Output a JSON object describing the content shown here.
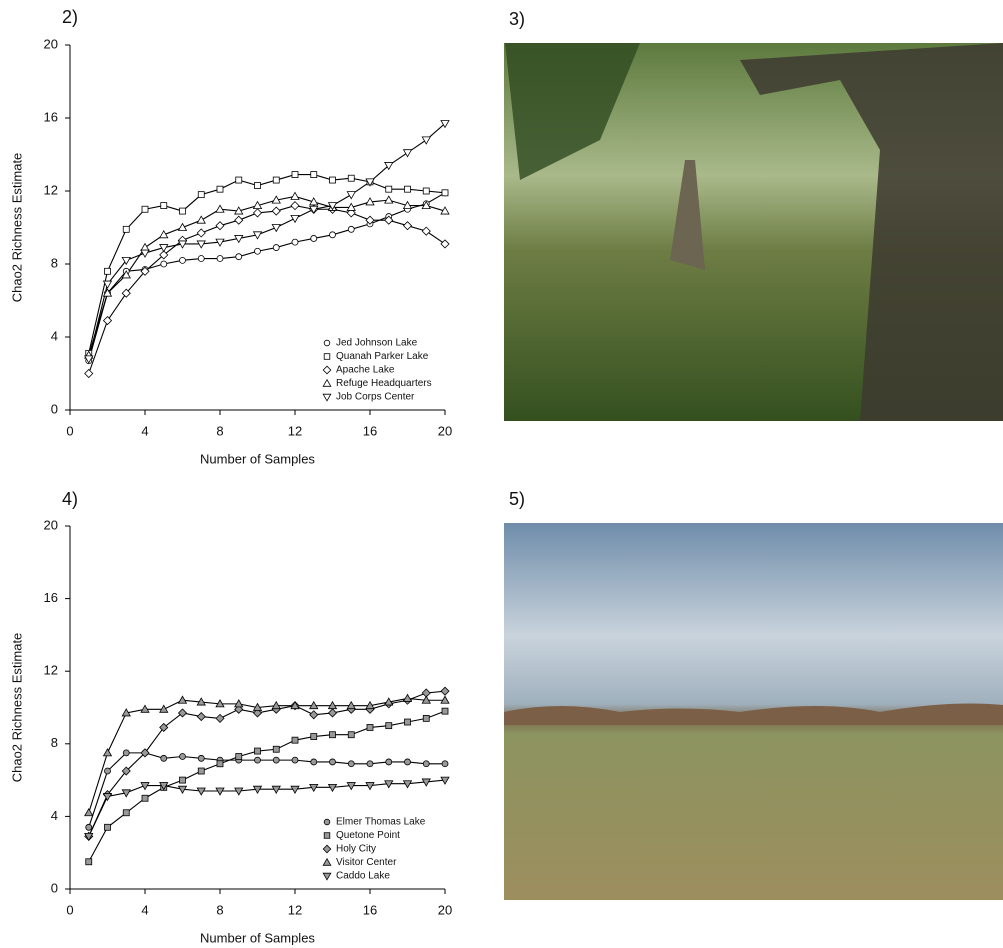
{
  "panel_labels": [
    "2)",
    "3)",
    "4)",
    "5)"
  ],
  "chart_data": [
    {
      "type": "line",
      "xlabel": "Number of Samples",
      "ylabel": "Chao2 Richness Estimate",
      "x": [
        1,
        2,
        3,
        4,
        5,
        6,
        7,
        8,
        9,
        10,
        11,
        12,
        13,
        14,
        15,
        16,
        17,
        18,
        19,
        20
      ],
      "xlim": [
        0,
        20
      ],
      "xticks": [
        0,
        4,
        8,
        12,
        16,
        20
      ],
      "ylim": [
        0,
        20
      ],
      "yticks": [
        0,
        4,
        8,
        12,
        16,
        20
      ],
      "legend": "lower right",
      "line_color": "#000000",
      "series": [
        {
          "name": "Jed Johnson Lake",
          "marker": "circle",
          "color": "#ffffff",
          "values": [
            2.7,
            6.4,
            7.6,
            7.7,
            8.0,
            8.2,
            8.3,
            8.3,
            8.4,
            8.7,
            8.9,
            9.2,
            9.4,
            9.6,
            9.9,
            10.2,
            10.6,
            11.0,
            11.3,
            11.9
          ]
        },
        {
          "name": "Quanah Parker Lake",
          "marker": "square",
          "color": "#ffffff",
          "values": [
            3.1,
            7.6,
            9.9,
            11.0,
            11.2,
            10.9,
            11.8,
            12.1,
            12.6,
            12.3,
            12.6,
            12.9,
            12.9,
            12.6,
            12.7,
            12.5,
            12.1,
            12.1,
            12.0,
            11.9
          ]
        },
        {
          "name": "Apache Lake",
          "marker": "diamond",
          "color": "#ffffff",
          "values": [
            2.0,
            4.9,
            6.4,
            7.6,
            8.5,
            9.3,
            9.7,
            10.1,
            10.4,
            10.8,
            10.9,
            11.2,
            11.0,
            11.0,
            10.8,
            10.4,
            10.4,
            10.1,
            9.8,
            9.1
          ]
        },
        {
          "name": "Refuge Headquarters",
          "marker": "triangle-up",
          "color": "#ffffff",
          "values": [
            3.0,
            6.4,
            7.4,
            8.9,
            9.6,
            10.0,
            10.4,
            11.0,
            10.9,
            11.2,
            11.5,
            11.7,
            11.4,
            11.1,
            11.1,
            11.4,
            11.5,
            11.2,
            11.2,
            10.9
          ]
        },
        {
          "name": "Job Corps Center",
          "marker": "triangle-down",
          "color": "#ffffff",
          "values": [
            2.8,
            6.9,
            8.2,
            8.6,
            8.9,
            9.1,
            9.1,
            9.2,
            9.4,
            9.6,
            10.0,
            10.5,
            11.0,
            11.2,
            11.8,
            12.5,
            13.4,
            14.1,
            14.8,
            15.7
          ]
        }
      ]
    },
    {
      "type": "line",
      "xlabel": "Number of Samples",
      "ylabel": "Chao2 Richness Estimate",
      "x": [
        1,
        2,
        3,
        4,
        5,
        6,
        7,
        8,
        9,
        10,
        11,
        12,
        13,
        14,
        15,
        16,
        17,
        18,
        19,
        20
      ],
      "xlim": [
        0,
        20
      ],
      "xticks": [
        0,
        4,
        8,
        12,
        16,
        20
      ],
      "ylim": [
        0,
        20
      ],
      "yticks": [
        0,
        4,
        8,
        12,
        16,
        20
      ],
      "legend": "lower right",
      "line_color": "#000000",
      "series": [
        {
          "name": "Elmer Thomas Lake",
          "marker": "circle",
          "color": "#999999",
          "values": [
            3.4,
            6.5,
            7.5,
            7.5,
            7.2,
            7.3,
            7.2,
            7.1,
            7.1,
            7.1,
            7.1,
            7.1,
            7.0,
            7.0,
            6.9,
            6.9,
            7.0,
            7.0,
            6.9,
            6.9
          ]
        },
        {
          "name": "Quetone Point",
          "marker": "square",
          "color": "#999999",
          "values": [
            1.5,
            3.4,
            4.2,
            5.0,
            5.6,
            6.0,
            6.5,
            6.9,
            7.3,
            7.6,
            7.7,
            8.2,
            8.4,
            8.5,
            8.5,
            8.9,
            9.0,
            9.2,
            9.4,
            9.8
          ]
        },
        {
          "name": "Holy City",
          "marker": "diamond",
          "color": "#999999",
          "values": [
            2.9,
            5.2,
            6.5,
            7.5,
            8.9,
            9.7,
            9.5,
            9.4,
            9.9,
            9.7,
            9.9,
            10.1,
            9.6,
            9.7,
            9.9,
            9.9,
            10.2,
            10.4,
            10.8,
            10.9
          ]
        },
        {
          "name": "Visitor Center",
          "marker": "triangle-up",
          "color": "#999999",
          "values": [
            4.2,
            7.5,
            9.7,
            9.9,
            9.9,
            10.4,
            10.3,
            10.2,
            10.2,
            10.0,
            10.1,
            10.1,
            10.1,
            10.1,
            10.1,
            10.1,
            10.3,
            10.5,
            10.4,
            10.4
          ]
        },
        {
          "name": "Caddo Lake",
          "marker": "triangle-down",
          "color": "#999999",
          "values": [
            2.9,
            5.1,
            5.3,
            5.7,
            5.7,
            5.5,
            5.4,
            5.4,
            5.4,
            5.5,
            5.5,
            5.5,
            5.6,
            5.6,
            5.7,
            5.7,
            5.8,
            5.8,
            5.9,
            6.0
          ]
        }
      ]
    }
  ]
}
